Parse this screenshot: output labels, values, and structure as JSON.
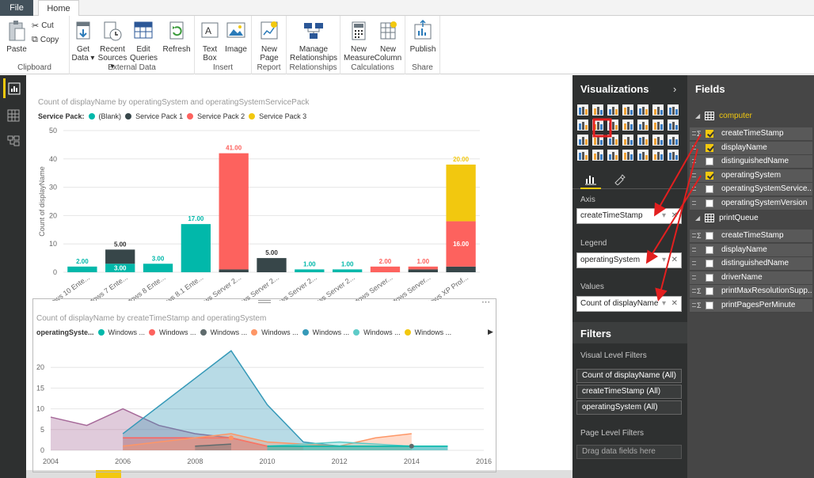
{
  "tabs": {
    "file": "File",
    "home": "Home"
  },
  "ribbon": {
    "clipboard": {
      "paste": "Paste",
      "cut": "Cut",
      "copy": "Copy",
      "label": "Clipboard"
    },
    "external": {
      "get_data": [
        "Get",
        "Data ▾"
      ],
      "recent": [
        "Recent",
        "Sources ▾"
      ],
      "edit": [
        "Edit",
        "Queries"
      ],
      "refresh": "Refresh",
      "label": "External Data"
    },
    "insert": {
      "textbox": [
        "Text",
        "Box"
      ],
      "image": "Image",
      "label": "Insert"
    },
    "report": {
      "newpage": [
        "New",
        "Page"
      ],
      "label": "Report"
    },
    "relationships": {
      "manage": [
        "Manage",
        "Relationships"
      ],
      "label": "Relationships"
    },
    "calculations": {
      "measure": [
        "New",
        "Measure"
      ],
      "column": [
        "New",
        "Column"
      ],
      "label": "Calculations"
    },
    "share": {
      "publish": "Publish",
      "label": "Share"
    }
  },
  "chart1": {
    "title": "Count of displayName by operatingSystem and operatingSystemServicePack",
    "legend_title": "Service Pack:",
    "legend": [
      {
        "name": "(Blank)",
        "color": "#01b8aa"
      },
      {
        "name": "Service Pack 1",
        "color": "#374649"
      },
      {
        "name": "Service Pack 2",
        "color": "#fd625e"
      },
      {
        "name": "Service Pack 3",
        "color": "#f2c80f"
      }
    ],
    "ylabel": "Count of displayName"
  },
  "chart2": {
    "title": "Count of displayName by createTimeStamp and operatingSystem",
    "legend_title": "operatingSyste...",
    "legend": [
      {
        "name": "Windows ...",
        "color": "#01b8aa"
      },
      {
        "name": "Windows ...",
        "color": "#fd625e"
      },
      {
        "name": "Windows ...",
        "color": "#5f6b6d"
      },
      {
        "name": "Windows ...",
        "color": "#fe9666"
      },
      {
        "name": "Windows ...",
        "color": "#3599b8"
      },
      {
        "name": "Windows ...",
        "color": "#5ecbc8"
      },
      {
        "name": "Windows ...",
        "color": "#f2c80f"
      }
    ]
  },
  "chart_data": [
    {
      "type": "bar",
      "stacked": true,
      "categories": [
        "Windows 10 Ente...",
        "Windows 7 Ente...",
        "Windows 8 Ente...",
        "Windows 8.1 Ente...",
        "Windows Server 2...",
        "Windows Server 2...",
        "Windows Server 2...",
        "Windows Server 2...",
        "Windows Server...",
        "Windows Server...",
        "Windows XP Prof..."
      ],
      "series": [
        {
          "name": "(Blank)",
          "color": "#01b8aa",
          "values": [
            2,
            3,
            3,
            17,
            0,
            0,
            1,
            1,
            0,
            0,
            0
          ]
        },
        {
          "name": "Service Pack 1",
          "color": "#374649",
          "values": [
            0,
            5,
            0,
            0,
            1,
            5,
            0,
            0,
            0,
            1,
            2
          ]
        },
        {
          "name": "Service Pack 2",
          "color": "#fd625e",
          "values": [
            0,
            0,
            0,
            0,
            41,
            0,
            0,
            0,
            2,
            1,
            16
          ]
        },
        {
          "name": "Service Pack 3",
          "color": "#f2c80f",
          "values": [
            0,
            0,
            0,
            0,
            0,
            0,
            0,
            0,
            0,
            0,
            20
          ]
        }
      ],
      "labels": [
        {
          "cat": 0,
          "text": "2.00",
          "pos": "above",
          "color": "#01b8aa"
        },
        {
          "cat": 1,
          "text": "5.00",
          "pos": "above",
          "color": "#333333"
        },
        {
          "cat": 1,
          "text": "3.00",
          "pos": "inside",
          "color": "#ffffff"
        },
        {
          "cat": 2,
          "text": "3.00",
          "pos": "above",
          "color": "#01b8aa"
        },
        {
          "cat": 3,
          "text": "17.00",
          "pos": "above",
          "color": "#01b8aa"
        },
        {
          "cat": 4,
          "text": "41.00",
          "pos": "above",
          "color": "#fd625e"
        },
        {
          "cat": 5,
          "text": "5.00",
          "pos": "above",
          "color": "#333333"
        },
        {
          "cat": 6,
          "text": "1.00",
          "pos": "above",
          "color": "#01b8aa"
        },
        {
          "cat": 7,
          "text": "1.00",
          "pos": "above",
          "color": "#01b8aa"
        },
        {
          "cat": 8,
          "text": "2.00",
          "pos": "above",
          "color": "#fd625e"
        },
        {
          "cat": 9,
          "text": "1.00",
          "pos": "above",
          "color": "#fd625e"
        },
        {
          "cat": 10,
          "text": "20.00",
          "pos": "above",
          "color": "#f2c80f"
        },
        {
          "cat": 10,
          "text": "16.00",
          "pos": "inside",
          "color": "#ffffff"
        }
      ],
      "yticks": [
        0,
        10,
        20,
        30,
        40,
        50
      ],
      "ylim": [
        0,
        50
      ],
      "ylabel": "Count of displayName",
      "grid": true
    },
    {
      "type": "area",
      "xticks": [
        2004,
        2006,
        2008,
        2010,
        2012,
        2014,
        2016
      ],
      "xlim": [
        2004,
        2016
      ],
      "yticks": [
        0,
        5,
        10,
        15,
        20
      ],
      "ylim": [
        0,
        25
      ],
      "grid": true,
      "series": [
        {
          "name": "Windows ...",
          "color": "#a66999",
          "points": [
            [
              2004,
              8
            ],
            [
              2005,
              6
            ],
            [
              2006,
              10
            ],
            [
              2007,
              6
            ],
            [
              2008,
              4
            ],
            [
              2009,
              3
            ],
            [
              2010,
              1
            ]
          ]
        },
        {
          "name": "Windows ...",
          "color": "#3599b8",
          "points": [
            [
              2006,
              4
            ],
            [
              2009,
              24
            ],
            [
              2010,
              11
            ],
            [
              2011,
              2
            ],
            [
              2012,
              1
            ],
            [
              2014,
              1
            ],
            [
              2015,
              1
            ]
          ]
        },
        {
          "name": "Windows ...",
          "color": "#fd625e",
          "points": [
            [
              2006,
              3
            ],
            [
              2008,
              3
            ],
            [
              2009,
              3
            ],
            [
              2010,
              1
            ],
            [
              2011,
              1
            ]
          ]
        },
        {
          "name": "Windows ...",
          "color": "#fe9666",
          "points": [
            [
              2006,
              1
            ],
            [
              2008,
              3
            ],
            [
              2009,
              4
            ],
            [
              2010,
              2
            ],
            [
              2012,
              1
            ],
            [
              2013,
              3
            ],
            [
              2014,
              4
            ]
          ]
        },
        {
          "name": "Windows ...",
          "color": "#5ecbc8",
          "points": [
            [
              2010,
              1
            ],
            [
              2012,
              2
            ],
            [
              2013,
              1.5
            ],
            [
              2014,
              1
            ]
          ]
        },
        {
          "name": "Windows ...",
          "color": "#5f6b6d",
          "points": [
            [
              2008,
              1
            ],
            [
              2009,
              1.5
            ]
          ]
        },
        {
          "name": "Windows ...",
          "color": "#01b8aa",
          "points": [
            [
              2010,
              1
            ],
            [
              2011,
              1
            ],
            [
              2012,
              1
            ],
            [
              2013,
              1
            ],
            [
              2014,
              1
            ],
            [
              2015,
              1
            ]
          ]
        }
      ]
    }
  ],
  "visualizations": {
    "title": "Visualizations",
    "axis": {
      "label": "Axis",
      "value": "createTimeStamp"
    },
    "legend": {
      "label": "Legend",
      "value": "operatingSystem"
    },
    "values": {
      "label": "Values",
      "value": "Count of displayName"
    }
  },
  "filters": {
    "title": "Filters",
    "visual_label": "Visual Level Filters",
    "visual": [
      "Count of displayName (All)",
      "createTimeStamp (All)",
      "operatingSystem (All)"
    ],
    "page_label": "Page Level Filters",
    "page_placeholder": "Drag data fields here"
  },
  "fields": {
    "title": "Fields",
    "tables": [
      {
        "name": "computer",
        "fields": [
          {
            "name": "createTimeStamp",
            "sigma": true,
            "checked": true
          },
          {
            "name": "displayName",
            "sigma": false,
            "checked": true
          },
          {
            "name": "distinguishedName",
            "sigma": false,
            "checked": false
          },
          {
            "name": "operatingSystem",
            "sigma": false,
            "checked": true
          },
          {
            "name": "operatingSystemService...",
            "sigma": false,
            "checked": false
          },
          {
            "name": "operatingSystemVersion",
            "sigma": false,
            "checked": false
          }
        ]
      },
      {
        "name": "printQueue",
        "fields": [
          {
            "name": "createTimeStamp",
            "sigma": true,
            "checked": false
          },
          {
            "name": "displayName",
            "sigma": false,
            "checked": false
          },
          {
            "name": "distinguishedName",
            "sigma": false,
            "checked": false
          },
          {
            "name": "driverName",
            "sigma": false,
            "checked": false
          },
          {
            "name": "printMaxResolutionSupp...",
            "sigma": true,
            "checked": false
          },
          {
            "name": "printPagesPerMinute",
            "sigma": true,
            "checked": false
          }
        ]
      }
    ]
  }
}
